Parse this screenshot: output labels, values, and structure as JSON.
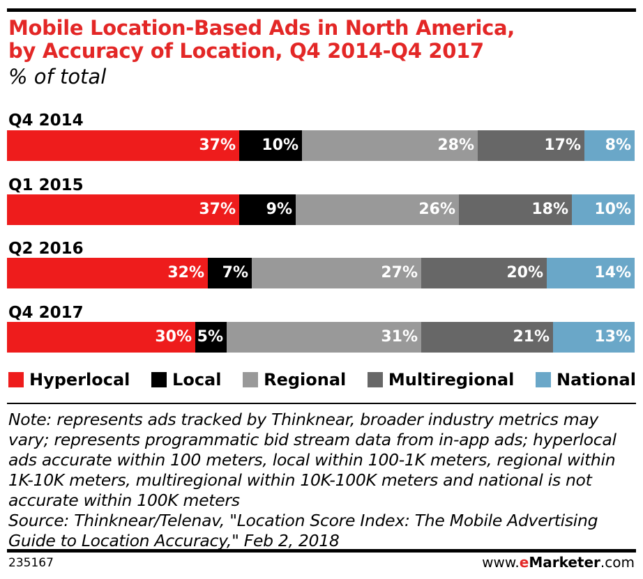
{
  "header": {
    "title_line1": "Mobile Location-Based Ads in North America,",
    "title_line2": "by Accuracy of Location, Q4 2014-Q4 2017",
    "subtitle": "% of total"
  },
  "chart_data": {
    "type": "bar",
    "orientation": "horizontal",
    "stacked": true,
    "title": "Mobile Location-Based Ads in North America, by Accuracy of Location, Q4 2014-Q4 2017",
    "subtitle": "% of total",
    "categories": [
      "Q4 2014",
      "Q1 2015",
      "Q2 2016",
      "Q4 2017"
    ],
    "series": [
      {
        "name": "Hyperlocal",
        "color": "#ee1c1c",
        "label_color": "#ffffff",
        "values": [
          37,
          37,
          32,
          30
        ]
      },
      {
        "name": "Local",
        "color": "#000000",
        "label_color": "#ffffff",
        "values": [
          10,
          9,
          7,
          5
        ]
      },
      {
        "name": "Regional",
        "color": "#999999",
        "label_color": "#ffffff",
        "values": [
          28,
          26,
          27,
          31
        ]
      },
      {
        "name": "Multiregional",
        "color": "#676767",
        "label_color": "#ffffff",
        "values": [
          17,
          18,
          20,
          21
        ]
      },
      {
        "name": "National",
        "color": "#6aa7c8",
        "label_color": "#ffffff",
        "values": [
          8,
          10,
          14,
          13
        ]
      }
    ],
    "value_suffix": "%",
    "legend_position": "bottom",
    "grid": false
  },
  "footer": {
    "note": "Note: represents ads tracked by Thinknear, broader industry metrics may vary; represents programmatic bid stream data from in-app ads; hyperlocal ads accurate within 100 meters, local within 100-1K meters, regional within 1K-10K meters, multiregional within 10K-100K meters and national is not accurate within 100K meters",
    "source": "Source: Thinknear/Telenav, \"Location Score Index: The Mobile Advertising Guide to Location Accuracy,\" Feb 2, 2018",
    "chart_id": "235167",
    "brand_prefix": "www.",
    "brand_e": "e",
    "brand_name": "Marketer",
    "brand_suffix": ".com"
  }
}
